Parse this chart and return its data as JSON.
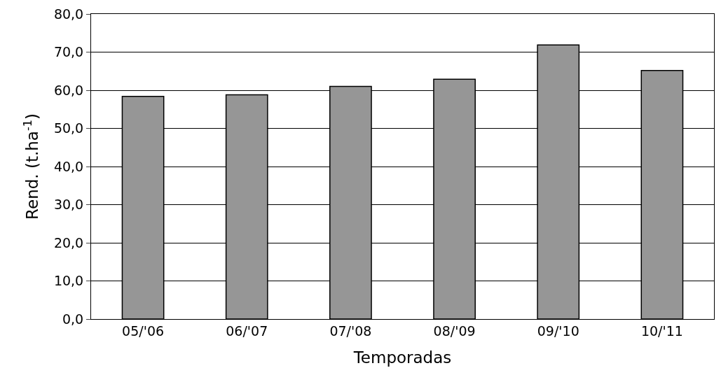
{
  "chart_data": {
    "type": "bar",
    "xlabel": "Temporadas",
    "ylabel": "Rend. (t.ha$^{-1}$)",
    "categories": [
      "05/'06",
      "06/'07",
      "07/'08",
      "08/'09",
      "09/'10",
      "10/'11"
    ],
    "values": [
      58.4,
      58.8,
      61.0,
      62.9,
      71.9,
      65.2
    ],
    "color": "#969696",
    "ylim": [
      0,
      80
    ],
    "yticks": [
      {
        "value": 0,
        "label": "0,0"
      },
      {
        "value": 10,
        "label": "10,0"
      },
      {
        "value": 20,
        "label": "20,0"
      },
      {
        "value": 30,
        "label": "30,0"
      },
      {
        "value": 40,
        "label": "40,0"
      },
      {
        "value": 50,
        "label": "50,0"
      },
      {
        "value": 60,
        "label": "60,0"
      },
      {
        "value": 70,
        "label": "70,0"
      },
      {
        "value": 80,
        "label": "80,0"
      }
    ],
    "grid": "y"
  }
}
